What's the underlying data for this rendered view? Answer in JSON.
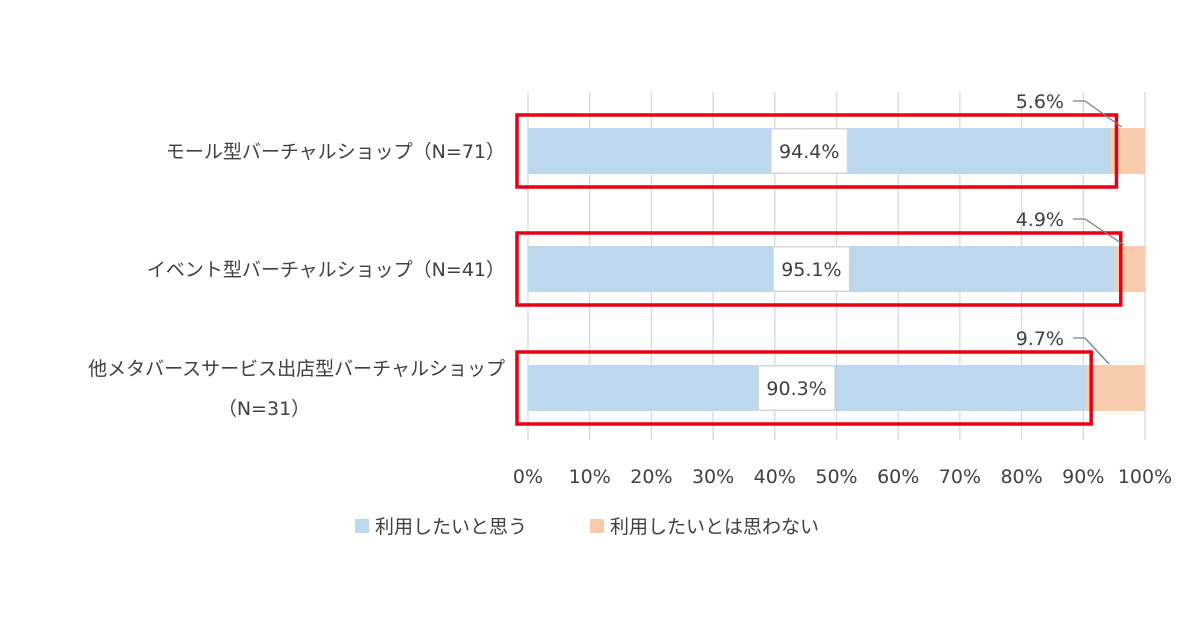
{
  "chart_data": {
    "type": "bar",
    "orientation": "horizontal",
    "stacked": "100%",
    "categories": [
      "モール型バーチャルショップ（N=71）",
      "イベント型バーチャルショップ（N=41）",
      "他メタバースサービス出店型バーチャルショップ（N=31）"
    ],
    "category_label_lines": [
      [
        "モール型バーチャルショップ（N=71）"
      ],
      [
        "イベント型バーチャルショップ（N=41）"
      ],
      [
        "他メタバースサービス出店型バーチャルショップ",
        "（N=31）"
      ]
    ],
    "series": [
      {
        "name": "利用したいと思う",
        "values": [
          94.4,
          95.1,
          90.3
        ],
        "labels": [
          "94.4%",
          "95.1%",
          "90.3%"
        ],
        "color": "#bdd7ee"
      },
      {
        "name": "利用したいとは思わない",
        "values": [
          5.6,
          4.9,
          9.7
        ],
        "labels": [
          "5.6%",
          "4.9%",
          "9.7%"
        ],
        "color": "#f8cbad"
      }
    ],
    "x_ticks": [
      "0%",
      "10%",
      "20%",
      "30%",
      "40%",
      "50%",
      "60%",
      "70%",
      "80%",
      "90%",
      "100%"
    ],
    "xlim": [
      0,
      100
    ],
    "grid": true,
    "legend_position": "bottom",
    "highlight_color": "#e60012",
    "title": "",
    "xlabel": "",
    "ylabel": ""
  }
}
